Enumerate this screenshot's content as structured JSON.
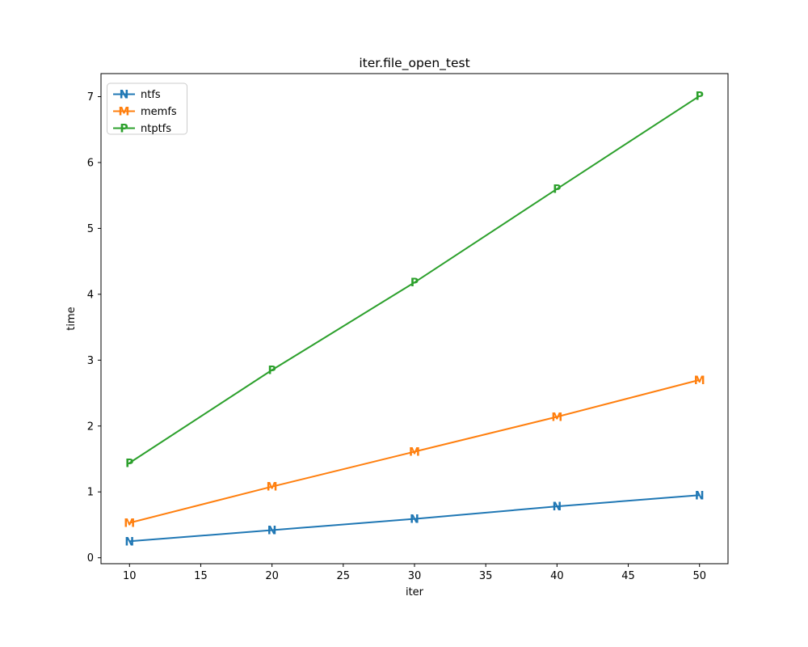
{
  "window": {
    "background": "#ffffff"
  },
  "chart_data": {
    "type": "line",
    "title": "iter.file_open_test",
    "xlabel": "iter",
    "ylabel": "time",
    "x": [
      10,
      20,
      30,
      40,
      50
    ],
    "series": [
      {
        "name": "ntfs",
        "marker": "N",
        "color": "#1f77b4",
        "values": [
          0.25,
          0.42,
          0.59,
          0.78,
          0.95
        ]
      },
      {
        "name": "memfs",
        "marker": "M",
        "color": "#ff7f0e",
        "values": [
          0.53,
          1.08,
          1.61,
          2.14,
          2.7
        ]
      },
      {
        "name": "ntptfs",
        "marker": "P",
        "color": "#2ca02c",
        "values": [
          1.44,
          2.85,
          4.18,
          5.6,
          7.01
        ]
      }
    ],
    "xticks": [
      10,
      15,
      20,
      25,
      30,
      35,
      40,
      45,
      50
    ],
    "yticks": [
      0,
      1,
      2,
      3,
      4,
      5,
      6,
      7
    ],
    "xlim": [
      8,
      52
    ],
    "ylim": [
      -0.09,
      7.35
    ],
    "grid": false,
    "legend_position": "upper-left",
    "legend_border_color": "#cccccc",
    "axis_color": "#000000",
    "text_color": "#000000"
  }
}
